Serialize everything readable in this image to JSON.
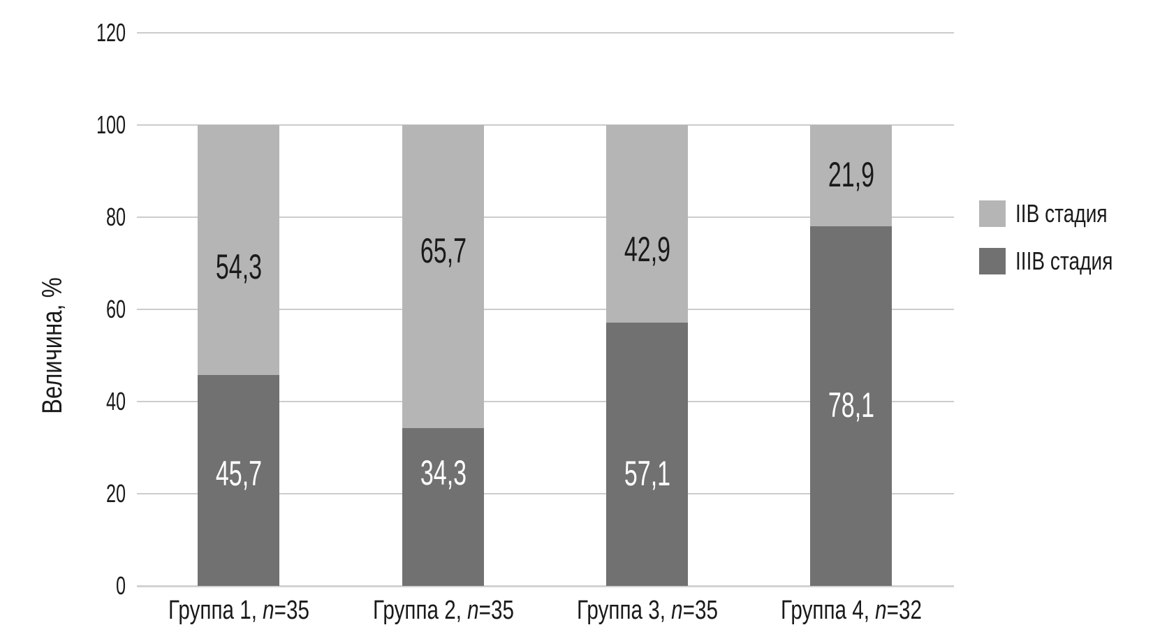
{
  "chart_data": {
    "type": "bar",
    "stacked": true,
    "title": "",
    "ylabel": "Величина, %",
    "xlabel": "",
    "ylim": [
      0,
      120
    ],
    "yticks": [
      0,
      20,
      40,
      60,
      80,
      100,
      120
    ],
    "grid": "horizontal",
    "legend_position": "right",
    "categories": [
      {
        "prefix": "Группа 1, ",
        "n": "n",
        "suffix": "=35"
      },
      {
        "prefix": "Группа 2, ",
        "n": "n",
        "suffix": "=35"
      },
      {
        "prefix": "Группа 3, ",
        "n": "n",
        "suffix": "=35"
      },
      {
        "prefix": "Группа 4, ",
        "n": "n",
        "suffix": "=32"
      }
    ],
    "series": [
      {
        "name": "IIB стадия",
        "stack_position": "top",
        "color": "#b5b5b5",
        "label_color": "#1a1a1a",
        "values": [
          54.3,
          65.7,
          42.9,
          21.9
        ],
        "labels": [
          "54,3",
          "65,7",
          "42,9",
          "21,9"
        ]
      },
      {
        "name": "IIIB стадия",
        "stack_position": "bottom",
        "color": "#717171",
        "label_color": "#ffffff",
        "values": [
          45.7,
          34.3,
          57.1,
          78.1
        ],
        "labels": [
          "45,7",
          "34,3",
          "57,1",
          "78,1"
        ]
      }
    ]
  },
  "colors": {
    "background": "#ffffff",
    "gridline": "#cccccc",
    "text": "#1a1a1a"
  }
}
